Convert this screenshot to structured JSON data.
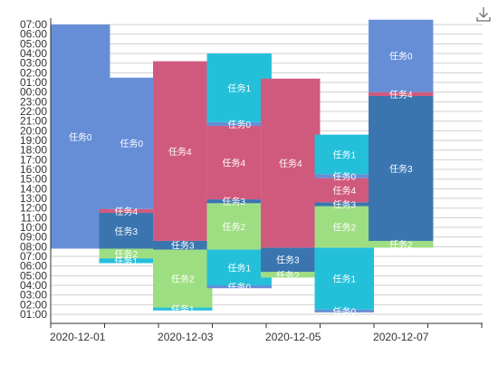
{
  "toolbox": {
    "icon": "download-icon"
  },
  "chart_data": {
    "type": "custom-gantt",
    "title": "",
    "xlabel": "",
    "ylabel": "",
    "x_ticks": [
      "2020-12-01",
      "2020-12-03",
      "2020-12-05",
      "2020-12-07"
    ],
    "y_ticks": [
      "07:00",
      "06:00",
      "05:00",
      "04:00",
      "03:00",
      "02:00",
      "01:00",
      "00:00",
      "23:00",
      "22:00",
      "21:00",
      "20:00",
      "19:00",
      "18:00",
      "17:00",
      "16:00",
      "15:00",
      "14:00",
      "13:00",
      "12:00",
      "11:00",
      "10:00",
      "09:00",
      "08:00",
      "07:00",
      "06:00",
      "05:00",
      "04:00",
      "03:00",
      "02:00",
      "01:00"
    ],
    "y_range_hours": [
      0,
      31
    ],
    "x_range_days": [
      0,
      8
    ],
    "colors": {
      "任务0": "#668ed6",
      "任务1": "#24c0da",
      "任务2": "#9ede83",
      "任务3": "#3a75b0",
      "任务4": "#d05a7e"
    },
    "bars": [
      {
        "task": "任务0",
        "label": "任务0",
        "day_start": 0,
        "day_end": 1.1,
        "start": 7.8,
        "end": 31.0
      },
      {
        "task": "任务1",
        "label": "任务1",
        "day_start": 0.9,
        "day_end": 1.9,
        "start": 6.3,
        "end": 6.8
      },
      {
        "task": "任务2",
        "label": "任务2",
        "day_start": 0.9,
        "day_end": 1.9,
        "start": 6.8,
        "end": 7.8
      },
      {
        "task": "任务3",
        "label": "任务3",
        "day_start": 0.9,
        "day_end": 1.9,
        "start": 7.8,
        "end": 11.5
      },
      {
        "task": "任务4",
        "label": "任务4",
        "day_start": 0.9,
        "day_end": 1.9,
        "start": 11.5,
        "end": 11.9
      },
      {
        "task": "任务0",
        "label": "任务0",
        "day_start": 1.1,
        "day_end": 1.9,
        "start": 11.9,
        "end": 25.5
      },
      {
        "task": "任务1",
        "label": "任务1",
        "day_start": 1.9,
        "day_end": 3.0,
        "start": 1.4,
        "end": 1.7
      },
      {
        "task": "任务2",
        "label": "任务2",
        "day_start": 1.9,
        "day_end": 3.0,
        "start": 1.7,
        "end": 7.7
      },
      {
        "task": "任务3",
        "label": "任务3",
        "day_start": 1.9,
        "day_end": 3.0,
        "start": 7.7,
        "end": 8.6
      },
      {
        "task": "任务4",
        "label": "任务4",
        "day_start": 1.9,
        "day_end": 2.9,
        "start": 8.6,
        "end": 27.2
      },
      {
        "task": "任务0",
        "label": "任务0",
        "day_start": 2.9,
        "day_end": 4.1,
        "start": 3.7,
        "end": 4.0
      },
      {
        "task": "任务1",
        "label": "任务1",
        "day_start": 2.9,
        "day_end": 4.1,
        "start": 4.0,
        "end": 7.7
      },
      {
        "task": "任务2",
        "label": "任务2",
        "day_start": 2.9,
        "day_end": 3.9,
        "start": 7.7,
        "end": 12.5
      },
      {
        "task": "任务3",
        "label": "任务3",
        "day_start": 2.9,
        "day_end": 3.9,
        "start": 12.5,
        "end": 12.9
      },
      {
        "task": "任务4",
        "label": "任务4",
        "day_start": 2.9,
        "day_end": 3.9,
        "start": 12.9,
        "end": 20.5
      },
      {
        "task": "任务0",
        "label": "任务0",
        "day_start": 2.9,
        "day_end": 4.1,
        "start": 20.5,
        "end": 20.9
      },
      {
        "task": "任务1",
        "label": "任务1",
        "day_start": 2.9,
        "day_end": 4.1,
        "start": 20.9,
        "end": 28.0
      },
      {
        "task": "任务2",
        "label": "任务2",
        "day_start": 3.9,
        "day_end": 4.9,
        "start": 4.8,
        "end": 5.4
      },
      {
        "task": "任务3",
        "label": "任务3",
        "day_start": 3.9,
        "day_end": 4.9,
        "start": 5.4,
        "end": 7.9
      },
      {
        "task": "任务4",
        "label": "任务4",
        "day_start": 3.9,
        "day_end": 5.0,
        "start": 7.9,
        "end": 25.4
      },
      {
        "task": "任务0",
        "label": "任务0",
        "day_start": 4.9,
        "day_end": 6.0,
        "start": 1.2,
        "end": 1.5
      },
      {
        "task": "任务1",
        "label": "任务1",
        "day_start": 4.9,
        "day_end": 6.0,
        "start": 1.5,
        "end": 7.9
      },
      {
        "task": "任务2",
        "label": "任务2",
        "day_start": 4.9,
        "day_end": 6.0,
        "start": 7.9,
        "end": 12.2
      },
      {
        "task": "任务3",
        "label": "任务3",
        "day_start": 4.9,
        "day_end": 6.0,
        "start": 12.2,
        "end": 12.6
      },
      {
        "task": "任务4",
        "label": "任务4",
        "day_start": 4.9,
        "day_end": 6.0,
        "start": 12.6,
        "end": 15.1
      },
      {
        "task": "任务0",
        "label": "任务0",
        "day_start": 4.9,
        "day_end": 6.0,
        "start": 15.1,
        "end": 15.5
      },
      {
        "task": "任务1",
        "label": "任务1",
        "day_start": 4.9,
        "day_end": 6.0,
        "start": 15.5,
        "end": 19.6
      },
      {
        "task": "任务2",
        "label": "任务2",
        "day_start": 5.9,
        "day_end": 7.1,
        "start": 7.9,
        "end": 8.6
      },
      {
        "task": "任务3",
        "label": "任务3",
        "day_start": 5.9,
        "day_end": 7.1,
        "start": 8.6,
        "end": 23.6
      },
      {
        "task": "任务4",
        "label": "任务4",
        "day_start": 5.9,
        "day_end": 7.1,
        "start": 23.6,
        "end": 24.0
      },
      {
        "task": "任务0",
        "label": "任务0",
        "day_start": 5.9,
        "day_end": 7.1,
        "start": 24.0,
        "end": 31.5
      }
    ]
  }
}
